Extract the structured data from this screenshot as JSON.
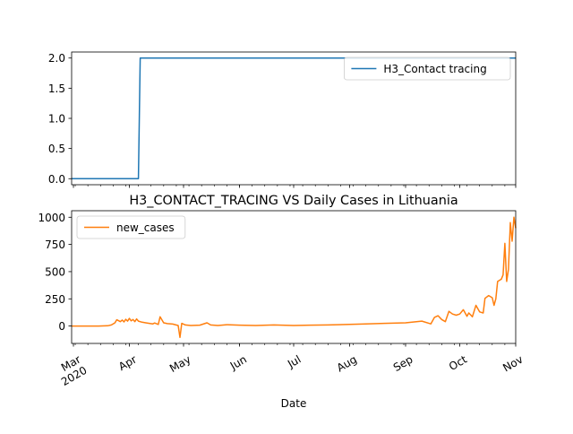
{
  "chart_data": [
    {
      "type": "line",
      "title": "",
      "xlabel": "",
      "ylabel": "",
      "ylim": [
        -0.1,
        2.1
      ],
      "xlim": [
        "2020-02-29",
        "2020-11-01"
      ],
      "yticks": [
        0.0,
        0.5,
        1.0,
        1.5,
        2.0
      ],
      "ytick_labels": [
        "0.0",
        "0.5",
        "1.0",
        "1.5",
        "2.0"
      ],
      "legend_position": "top-right",
      "series": [
        {
          "name": "H3_Contact tracing",
          "color": "#1f77b4",
          "x": [
            "2020-02-29",
            "2020-04-06",
            "2020-04-07",
            "2020-11-01"
          ],
          "y": [
            0,
            0,
            2,
            2
          ]
        }
      ]
    },
    {
      "type": "line",
      "title": "H3_CONTACT_TRACING VS Daily Cases in Lithuania",
      "xlabel": "Date",
      "ylabel": "",
      "ylim": [
        -160,
        1060
      ],
      "xlim": [
        "2020-02-29",
        "2020-11-01"
      ],
      "yticks": [
        0,
        250,
        500,
        750,
        1000
      ],
      "ytick_labels": [
        "0",
        "250",
        "500",
        "750",
        "1000"
      ],
      "xticks": [
        "2020-03-01",
        "2020-04-01",
        "2020-05-01",
        "2020-06-01",
        "2020-07-01",
        "2020-08-01",
        "2020-09-01",
        "2020-10-01",
        "2020-11-01"
      ],
      "xtick_labels": [
        [
          "Mar",
          "2020"
        ],
        [
          "Apr"
        ],
        [
          "May"
        ],
        [
          "Jun"
        ],
        [
          "Jul"
        ],
        [
          "Aug"
        ],
        [
          "Sep"
        ],
        [
          "Oct"
        ],
        [
          "Nov"
        ]
      ],
      "legend_position": "top-left",
      "series": [
        {
          "name": "new_cases",
          "color": "#ff7f0e",
          "x": [
            "2020-02-29",
            "2020-03-10",
            "2020-03-15",
            "2020-03-20",
            "2020-03-22",
            "2020-03-24",
            "2020-03-25",
            "2020-03-27",
            "2020-03-28",
            "2020-03-29",
            "2020-03-30",
            "2020-03-31",
            "2020-04-01",
            "2020-04-02",
            "2020-04-03",
            "2020-04-04",
            "2020-04-05",
            "2020-04-06",
            "2020-04-08",
            "2020-04-10",
            "2020-04-12",
            "2020-04-14",
            "2020-04-15",
            "2020-04-17",
            "2020-04-18",
            "2020-04-20",
            "2020-04-22",
            "2020-04-25",
            "2020-04-28",
            "2020-04-29",
            "2020-04-30",
            "2020-05-02",
            "2020-05-05",
            "2020-05-10",
            "2020-05-14",
            "2020-05-16",
            "2020-05-20",
            "2020-05-25",
            "2020-06-01",
            "2020-06-10",
            "2020-06-20",
            "2020-07-01",
            "2020-07-10",
            "2020-07-20",
            "2020-08-01",
            "2020-08-10",
            "2020-08-20",
            "2020-09-01",
            "2020-09-10",
            "2020-09-15",
            "2020-09-17",
            "2020-09-19",
            "2020-09-21",
            "2020-09-23",
            "2020-09-25",
            "2020-09-27",
            "2020-09-29",
            "2020-10-01",
            "2020-10-03",
            "2020-10-05",
            "2020-10-06",
            "2020-10-08",
            "2020-10-10",
            "2020-10-12",
            "2020-10-14",
            "2020-10-15",
            "2020-10-17",
            "2020-10-19",
            "2020-10-20",
            "2020-10-21",
            "2020-10-22",
            "2020-10-24",
            "2020-10-25",
            "2020-10-26",
            "2020-10-27",
            "2020-10-28",
            "2020-10-29",
            "2020-10-30",
            "2020-10-31",
            "2020-11-01"
          ],
          "y": [
            0,
            0,
            0,
            2,
            10,
            30,
            58,
            40,
            55,
            38,
            62,
            45,
            70,
            48,
            60,
            40,
            65,
            45,
            35,
            30,
            25,
            20,
            28,
            15,
            85,
            30,
            22,
            18,
            5,
            -105,
            25,
            10,
            5,
            8,
            30,
            10,
            5,
            12,
            8,
            5,
            10,
            5,
            8,
            10,
            15,
            20,
            25,
            30,
            45,
            20,
            80,
            95,
            60,
            40,
            135,
            110,
            100,
            110,
            150,
            90,
            120,
            85,
            190,
            130,
            120,
            255,
            280,
            260,
            190,
            250,
            410,
            430,
            470,
            760,
            410,
            520,
            950,
            780,
            1000,
            900
          ]
        }
      ]
    }
  ]
}
